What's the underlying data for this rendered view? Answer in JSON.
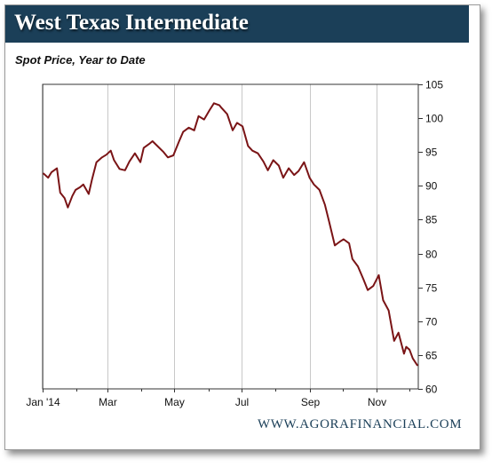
{
  "header": {
    "title": "West Texas Intermediate",
    "subtitle": "Spot Price, Year to Date"
  },
  "footer": {
    "source_url": "WWW.AGORAFINANCIAL.COM"
  },
  "colors": {
    "title_bar": "#1b3f58",
    "series_line": "#7a1416",
    "gridline": "#c8c8c8"
  },
  "chart_data": {
    "type": "line",
    "title": "West Texas Intermediate",
    "subtitle": "Spot Price, Year to Date",
    "xlabel": "",
    "ylabel": "",
    "x_tick_labels": [
      "Jan '14",
      "Mar",
      "May",
      "Jul",
      "Sep",
      "Nov"
    ],
    "y_tick_labels": [
      "60",
      "65",
      "70",
      "75",
      "80",
      "85",
      "90",
      "95",
      "100",
      "105"
    ],
    "ylim": [
      60,
      105
    ],
    "y_axis_side": "right",
    "grid": "vertical",
    "legend": "none",
    "series": [
      {
        "x": [
          "2014-01-02",
          "2014-01-06",
          "2014-01-09",
          "2014-01-14",
          "2014-01-17",
          "2014-01-21",
          "2014-01-24",
          "2014-01-28",
          "2014-01-31",
          "2014-02-04",
          "2014-02-07",
          "2014-02-12",
          "2014-02-15",
          "2014-02-19",
          "2014-02-24",
          "2014-02-28",
          "2014-03-04",
          "2014-03-07",
          "2014-03-12",
          "2014-03-17",
          "2014-03-21",
          "2014-03-26",
          "2014-03-31",
          "2014-04-03",
          "2014-04-08",
          "2014-04-11",
          "2014-04-16",
          "2014-04-21",
          "2014-04-25",
          "2014-04-30",
          "2014-05-05",
          "2014-05-09",
          "2014-05-14",
          "2014-05-19",
          "2014-05-23",
          "2014-05-28",
          "2014-06-02",
          "2014-06-06",
          "2014-06-11",
          "2014-06-13",
          "2014-06-18",
          "2014-06-23",
          "2014-06-27",
          "2014-07-02",
          "2014-07-07",
          "2014-07-11",
          "2014-07-16",
          "2014-07-21",
          "2014-07-25",
          "2014-07-30",
          "2014-08-04",
          "2014-08-08",
          "2014-08-13",
          "2014-08-18",
          "2014-08-22",
          "2014-08-27",
          "2014-09-01",
          "2014-09-05",
          "2014-09-10",
          "2014-09-15",
          "2014-09-19",
          "2014-09-24",
          "2014-09-29",
          "2014-10-02",
          "2014-10-07",
          "2014-10-10",
          "2014-10-15",
          "2014-10-20",
          "2014-10-24",
          "2014-10-29",
          "2014-11-03",
          "2014-11-07",
          "2014-11-12",
          "2014-11-17",
          "2014-11-21",
          "2014-11-26",
          "2014-11-28",
          "2014-12-01",
          "2014-12-04",
          "2014-12-08"
        ],
        "y": [
          91.8,
          91.2,
          92.0,
          92.6,
          89.0,
          88.2,
          86.8,
          88.5,
          89.4,
          89.8,
          90.2,
          88.8,
          91.0,
          93.5,
          94.2,
          94.6,
          95.2,
          93.8,
          92.5,
          92.3,
          93.6,
          94.8,
          93.5,
          95.6,
          96.2,
          96.6,
          95.8,
          95.0,
          94.2,
          94.5,
          96.5,
          98.0,
          98.6,
          98.2,
          100.3,
          99.8,
          101.2,
          102.2,
          101.9,
          101.5,
          100.6,
          98.2,
          99.3,
          98.8,
          95.9,
          95.2,
          94.8,
          93.6,
          92.3,
          93.8,
          93.0,
          91.2,
          92.6,
          91.6,
          92.2,
          93.5,
          91.2,
          90.2,
          89.4,
          87.2,
          84.6,
          81.2,
          81.8,
          82.1,
          81.5,
          79.2,
          78.1,
          76.2,
          74.6,
          75.2,
          76.8,
          73.1,
          71.6,
          67.1,
          68.3,
          65.2,
          66.2,
          65.8,
          64.5,
          63.5
        ]
      }
    ]
  }
}
